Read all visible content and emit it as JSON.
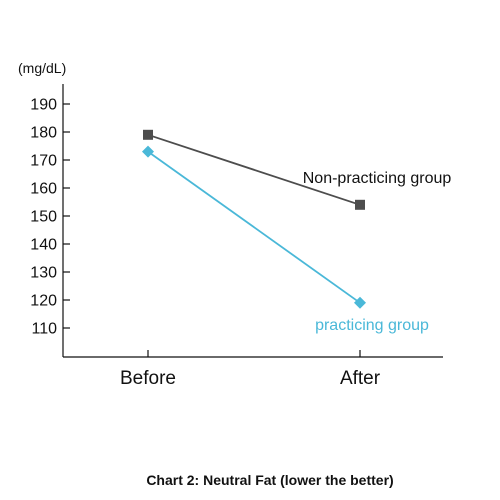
{
  "chart_data": {
    "type": "line",
    "title": "Chart 2: Neutral Fat (lower the better)",
    "unit_label": "(mg/dL)",
    "xlabel": "",
    "ylabel": "",
    "categories": [
      "Before",
      "After"
    ],
    "ylim": [
      100,
      195
    ],
    "yticks": [
      110,
      120,
      130,
      140,
      150,
      160,
      170,
      180,
      190
    ],
    "grid": false,
    "series": [
      {
        "name": "Non-practicing group",
        "values": [
          179,
          154
        ],
        "color": "#4d4d4d",
        "marker": "square"
      },
      {
        "name": "practicing group",
        "values": [
          173,
          119
        ],
        "color": "#4ab8d8",
        "marker": "diamond"
      }
    ]
  }
}
